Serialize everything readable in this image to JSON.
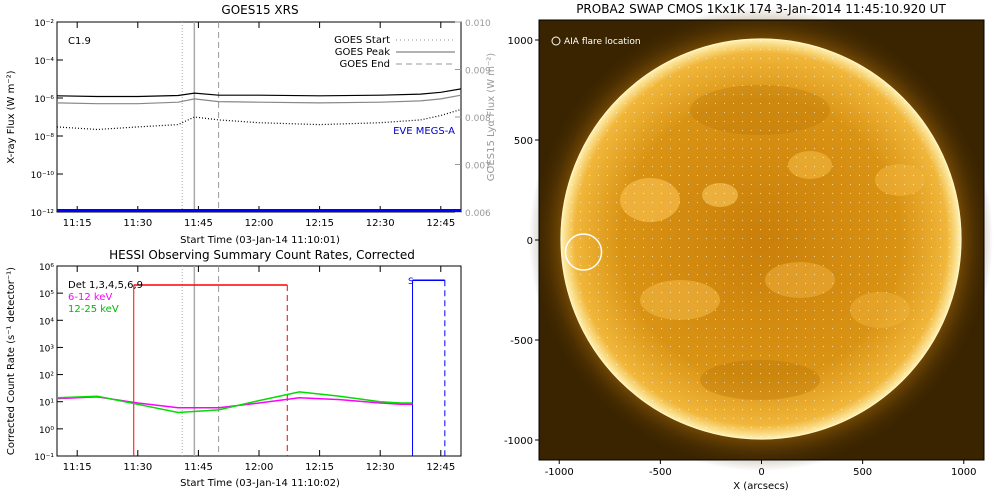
{
  "chart_data": [
    {
      "type": "line",
      "title": "GOES15 XRS",
      "xlabel": "Start Time (03-Jan-14 11:10:01)",
      "ylabel": "X-ray Flux (W m⁻²)",
      "ylabel_right": "GOES15 Lyα Flux (W m⁻²)",
      "flare_class": "C1.9",
      "x_ticks": [
        "11:15",
        "11:30",
        "11:45",
        "12:00",
        "12:15",
        "12:30",
        "12:45"
      ],
      "xlim": [
        "11:10",
        "12:50"
      ],
      "ylim": [
        1e-12,
        0.01
      ],
      "y_scale": "log",
      "y_ticks": [
        "10⁻¹²",
        "10⁻¹⁰",
        "10⁻⁸",
        "10⁻⁶",
        "10⁻⁴",
        "10⁻²"
      ],
      "ylim_right": [
        0.006,
        0.01
      ],
      "y_ticks_right": [
        "0.006",
        "0.007",
        "0.008",
        "0.009",
        "0.010"
      ],
      "legend": [
        "GOES Start",
        "GOES Peak",
        "GOES End"
      ],
      "legend_placement": "top-right",
      "annotation": "EVE MEGS-A",
      "markers": {
        "start": "11:41",
        "peak": "11:44",
        "end": "11:50"
      },
      "series": [
        {
          "color": "#000000",
          "x": [
            "11:10",
            "11:20",
            "11:30",
            "11:40",
            "11:44",
            "11:50",
            "12:00",
            "12:15",
            "12:30",
            "12:40",
            "12:45",
            "12:50"
          ],
          "values": [
            1.3e-06,
            1.2e-06,
            1.2e-06,
            1.35e-06,
            1.8e-06,
            1.4e-06,
            1.4e-06,
            1.3e-06,
            1.4e-06,
            1.6e-06,
            2e-06,
            3e-06
          ]
        },
        {
          "color": "#888888",
          "x": [
            "11:10",
            "11:20",
            "11:30",
            "11:40",
            "11:44",
            "11:50",
            "12:00",
            "12:15",
            "12:30",
            "12:40",
            "12:45",
            "12:50"
          ],
          "values": [
            5.5e-07,
            5e-07,
            5e-07,
            6e-07,
            9e-07,
            6.5e-07,
            6e-07,
            5.5e-07,
            6e-07,
            7e-07,
            9e-07,
            1.4e-06
          ]
        },
        {
          "color": "#000000",
          "style": "dotted",
          "x": [
            "11:10",
            "11:20",
            "11:30",
            "11:40",
            "11:44",
            "11:50",
            "12:00",
            "12:15",
            "12:30",
            "12:40",
            "12:45",
            "12:50"
          ],
          "values": [
            3e-08,
            2.2e-08,
            3e-08,
            4e-08,
            1e-07,
            7e-08,
            5e-08,
            4e-08,
            5e-08,
            7e-08,
            1.2e-07,
            2.5e-07
          ]
        },
        {
          "color": "#0000ff",
          "x": [
            "11:10",
            "12:50"
          ],
          "values": [
            1.2e-12,
            1.2e-12
          ]
        }
      ]
    },
    {
      "type": "line",
      "title": "HESSI Observing Summary Count Rates, Corrected",
      "xlabel": "Start Time (03-Jan-14 11:10:02)",
      "ylabel": "Corrected Count Rate (s⁻¹ detector⁻¹)",
      "detector_label": "Det 1,3,4,5,6,9",
      "x_ticks": [
        "11:15",
        "11:30",
        "11:45",
        "12:00",
        "12:15",
        "12:30",
        "12:45"
      ],
      "xlim": [
        "11:10",
        "12:50"
      ],
      "ylim": [
        0.1,
        1000000
      ],
      "y_scale": "log",
      "y_ticks": [
        "10⁻¹",
        "10⁰",
        "10¹",
        "10²",
        "10³",
        "10⁴",
        "10⁵",
        "10⁶"
      ],
      "annotations": [
        "S"
      ],
      "series": [
        {
          "name": "6-12 keV",
          "color": "#ff00ff",
          "x": [
            "11:10",
            "11:20",
            "11:30",
            "11:40",
            "11:50",
            "12:00",
            "12:10",
            "12:20",
            "12:30",
            "12:35",
            "12:38"
          ],
          "values": [
            13,
            15,
            9,
            6,
            6,
            9,
            14,
            12,
            9,
            8,
            8
          ]
        },
        {
          "name": "12-25 keV",
          "color": "#00dd00",
          "x": [
            "11:10",
            "11:20",
            "11:30",
            "11:40",
            "11:50",
            "12:00",
            "12:10",
            "12:20",
            "12:30",
            "12:35",
            "12:38"
          ],
          "values": [
            14,
            16,
            8,
            4,
            5,
            11,
            23,
            16,
            10,
            9,
            9
          ]
        }
      ],
      "overlays": [
        {
          "color": "#ff0000",
          "x_start": "11:29",
          "x_end": "12:07",
          "level": 200000
        },
        {
          "color": "#0000ff",
          "x_start": "12:38",
          "x_end": "12:46",
          "level": 300000
        }
      ]
    }
  ],
  "image_panel": {
    "title": "PROBA2 SWAP CMOS 1Kx1K 174  3-Jan-2014 11:45:10.920 UT",
    "legend_label": "AIA flare location",
    "xlabel": "X (arcsecs)",
    "x_ticks": [
      "-1000",
      "-500",
      "0",
      "500",
      "1000"
    ],
    "y_ticks": [
      "1000",
      "500",
      "0",
      "-500",
      "-1000"
    ],
    "xlim": [
      -1100,
      1100
    ],
    "ylim": [
      -1100,
      1100
    ],
    "flare_location": {
      "x": -880,
      "y": -60
    },
    "colors": {
      "background": "#3a2400",
      "disk": "#e8a012",
      "limb": "#fff6c8"
    }
  }
}
